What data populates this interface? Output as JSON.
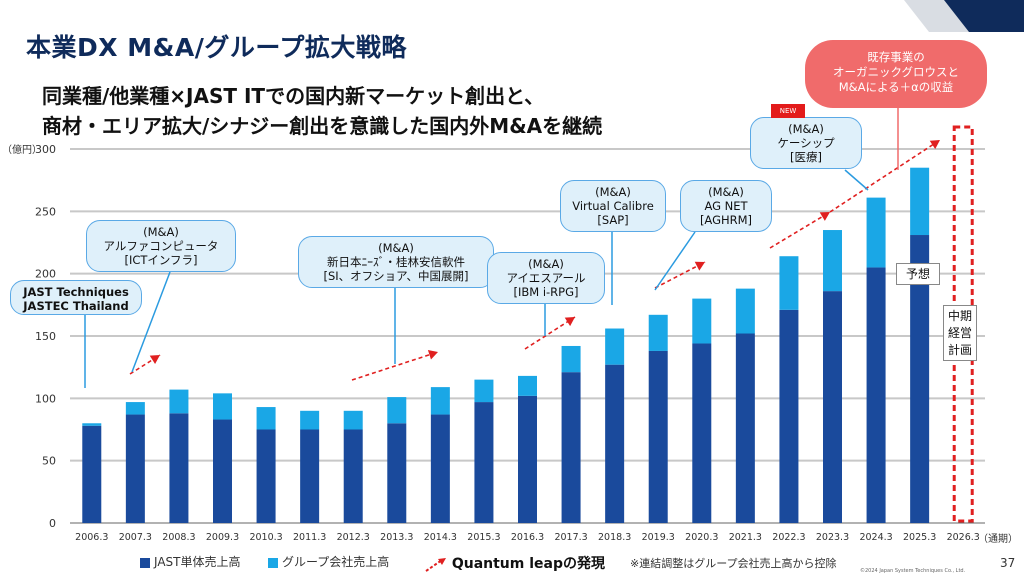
{
  "header": {
    "title": "本業DX M&A/グループ拡大戦略",
    "subtitle_line1": "同業種/他業種×JAST ITでの国内新マーケット創出と、",
    "subtitle_line2": "商材・エリア拡大/シナジー創出を意識した国内外M&Aを継続"
  },
  "annotations": {
    "jast_tech": "JAST Techniques\nJASTEC Thailand",
    "alpha": "(M&A)\nアルファコンピュータ\n[ICTインフラ]",
    "shinnihon": "(M&A)\n新日本ﾆｰｽﾞ・桂林安信軟件\n[SI、オフショア、中国展開]",
    "ies": "(M&A)\nアイエスアール\n[IBM i-RPG]",
    "virtual": "(M&A)\nVirtual Calibre\n[SAP]",
    "agnet": "(M&A)\nAG NET\n[AGHRM]",
    "keship": "(M&A)\nケーシップ\n[医療]",
    "new_badge": "NEW",
    "organic": "既存事業の\nオーガニックグロウスと\nM&Aによる＋αの収益",
    "yosou": "予想",
    "plan": "中期\n経営\n計画"
  },
  "units": {
    "y": "（億円）",
    "x": "（通期）"
  },
  "legend": {
    "jast": "JAST単体売上高",
    "group": "グループ会社売上高",
    "leap": "Quantum leapの発現",
    "note": "※連結調整はグループ会社売上高から控除"
  },
  "footer": {
    "page": "37",
    "copyright": "©2024 Japan System Techniques Co., Ltd."
  },
  "colors": {
    "jast": "#1a4a9c",
    "group": "#1aa7e6",
    "leap": "#e02020",
    "title": "#0f2b5b"
  },
  "chart_data": {
    "type": "bar",
    "stacked": true,
    "categories": [
      "2006.3",
      "2007.3",
      "2008.3",
      "2009.3",
      "2010.3",
      "2011.3",
      "2012.3",
      "2013.3",
      "2014.3",
      "2015.3",
      "2016.3",
      "2017.3",
      "2018.3",
      "2019.3",
      "2020.3",
      "2021.3",
      "2022.3",
      "2023.3",
      "2024.3",
      "2025.3",
      "2026.3"
    ],
    "series": [
      {
        "name": "JAST単体売上高",
        "values": [
          78,
          87,
          88,
          83,
          75,
          75,
          75,
          80,
          87,
          97,
          102,
          121,
          127,
          138,
          144,
          152,
          171,
          186,
          205,
          231,
          null
        ]
      },
      {
        "name": "グループ会社売上高",
        "values": [
          2,
          10,
          19,
          21,
          18,
          15,
          15,
          21,
          22,
          18,
          16,
          21,
          29,
          29,
          36,
          36,
          43,
          49,
          56,
          54,
          null
        ]
      }
    ],
    "ylim": [
      0,
      300
    ],
    "yticks": [
      0,
      50,
      100,
      150,
      200,
      250,
      300
    ],
    "grid": true,
    "legend_position": "bottom"
  }
}
